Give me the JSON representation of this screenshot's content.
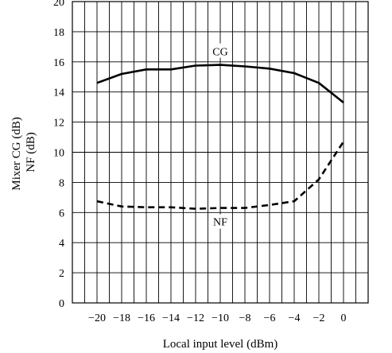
{
  "chart_data": {
    "type": "line",
    "xlabel": "Local input level  (dBm)",
    "ylabel_lines": [
      "Mixer CG  (dB)",
      "NF  (dB)"
    ],
    "xlim": [
      -22,
      2
    ],
    "ylim": [
      0,
      20
    ],
    "x_ticks": [
      -20,
      -18,
      -16,
      -14,
      -12,
      -10,
      -8,
      -6,
      -4,
      -2,
      0
    ],
    "x_tick_labels": [
      "−20",
      "−18",
      "−16",
      "−14",
      "−12",
      "−10",
      "−8",
      "−6",
      "−4",
      "−2",
      "0"
    ],
    "y_ticks": [
      0,
      2,
      4,
      6,
      8,
      10,
      12,
      14,
      16,
      18,
      20
    ],
    "y_tick_labels": [
      "0",
      "2",
      "4",
      "6",
      "8",
      "10",
      "12",
      "14",
      "16",
      "18",
      "20"
    ],
    "grid": true,
    "series": [
      {
        "name": "CG",
        "style": "solid",
        "label_at_x": -10,
        "points": [
          [
            -20,
            14.6
          ],
          [
            -18,
            15.2
          ],
          [
            -16,
            15.5
          ],
          [
            -14,
            15.5
          ],
          [
            -12,
            15.75
          ],
          [
            -10,
            15.8
          ],
          [
            -8,
            15.7
          ],
          [
            -6,
            15.55
          ],
          [
            -4,
            15.25
          ],
          [
            -2,
            14.6
          ],
          [
            0,
            13.3
          ]
        ]
      },
      {
        "name": "NF",
        "style": "dashed",
        "label_at_x": -10,
        "points": [
          [
            -20,
            6.75
          ],
          [
            -18,
            6.4
          ],
          [
            -16,
            6.35
          ],
          [
            -14,
            6.35
          ],
          [
            -12,
            6.25
          ],
          [
            -10,
            6.3
          ],
          [
            -8,
            6.3
          ],
          [
            -6,
            6.5
          ],
          [
            -4,
            6.75
          ],
          [
            -2,
            8.2
          ],
          [
            0,
            10.7
          ]
        ]
      }
    ]
  }
}
